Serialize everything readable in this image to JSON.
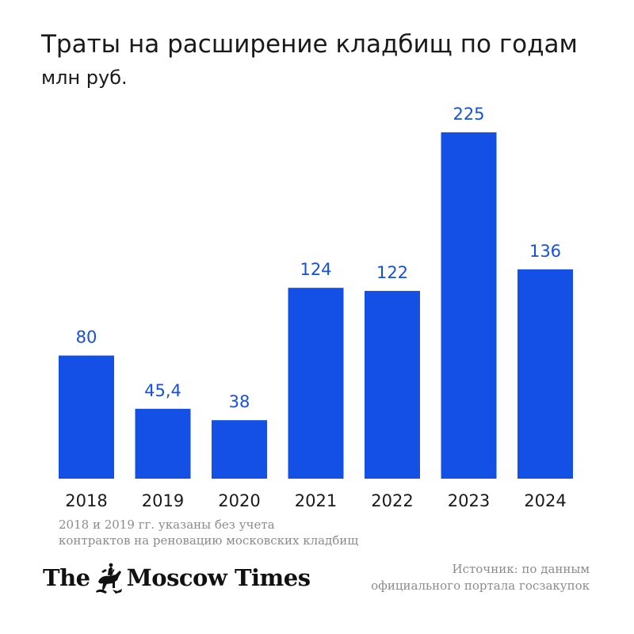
{
  "header": {
    "title": "Траты на расширение кладбищ по годам",
    "subtitle": "млн руб."
  },
  "colors": {
    "bar": "#1550e6",
    "label": "#1550e6",
    "axis_text": "#1a1a1a",
    "muted": "#8c8c8c"
  },
  "chart_data": {
    "type": "bar",
    "categories": [
      "2018",
      "2019",
      "2020",
      "2021",
      "2022",
      "2023",
      "2024"
    ],
    "values": [
      80,
      45.4,
      38,
      124,
      122,
      225,
      136
    ],
    "value_labels": [
      "80",
      "45,4",
      "38",
      "124",
      "122",
      "225",
      "136"
    ],
    "title": "Траты на расширение кладбищ по годам",
    "ylabel": "млн руб.",
    "xlabel": "",
    "ylim": [
      0,
      225
    ],
    "grid": false,
    "legend": "none"
  },
  "footnote": {
    "line1": "2018 и 2019 гг. указаны без учета",
    "line2": "контрактов на реновацию московских кладбищ"
  },
  "brand": {
    "left": "The",
    "right": "Moscow Times",
    "emblem_icon": "st-george-emblem-icon"
  },
  "source": {
    "line1": "Источник: по данным",
    "line2": "официального портала госзакупок"
  }
}
